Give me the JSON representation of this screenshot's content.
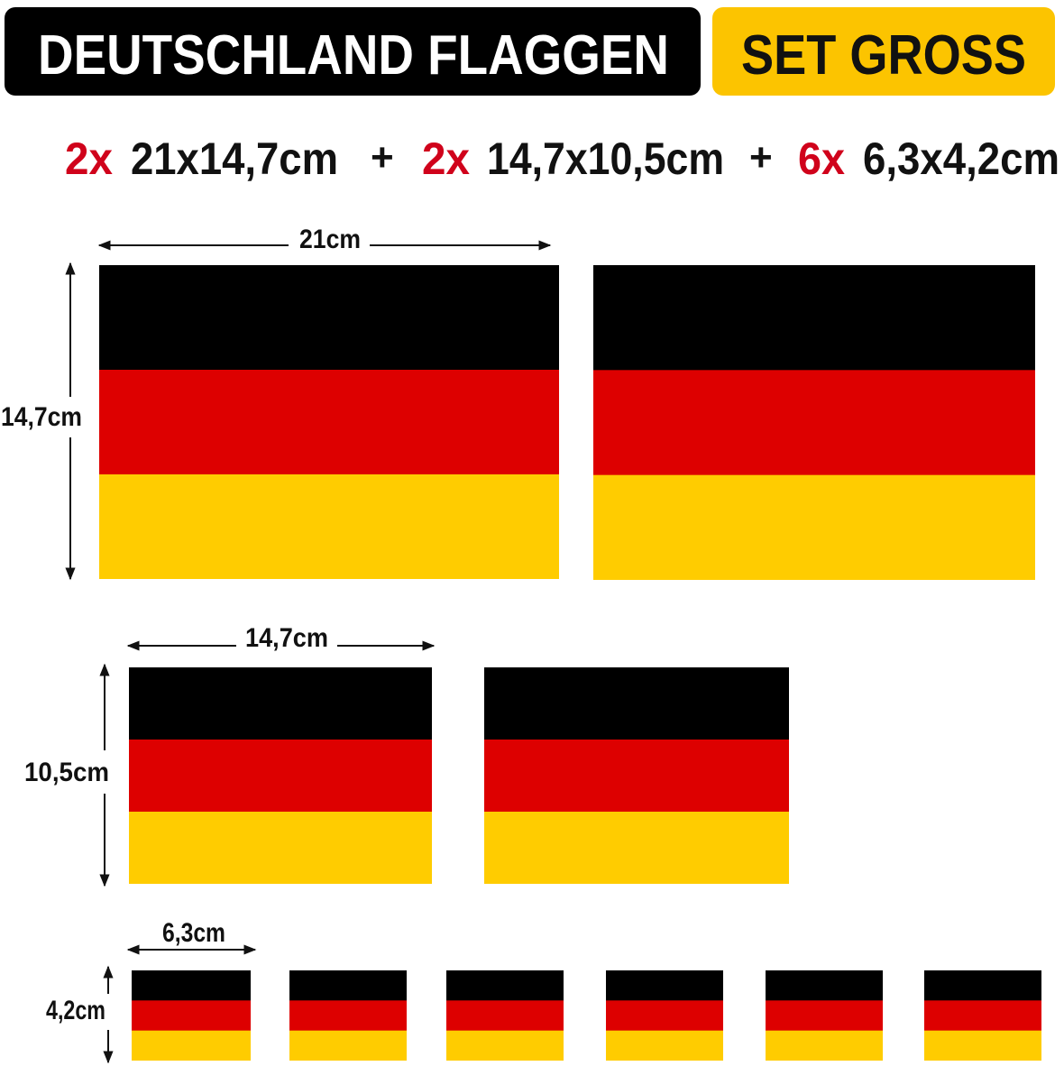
{
  "header": {
    "title": "DEUTSCHLAND FLAGGEN",
    "badge": "SET GROSS"
  },
  "summary": [
    {
      "count": "2x",
      "size": "21x14,7cm"
    },
    {
      "separator": "+"
    },
    {
      "count": "2x",
      "size": "14,7x10,5cm"
    },
    {
      "separator": "+"
    },
    {
      "count": "6x",
      "size": "6,3x4,2cm"
    }
  ],
  "sets": [
    {
      "width_label": "21cm",
      "height_label": "14,7cm"
    },
    {
      "width_label": "14,7cm",
      "height_label": "10,5cm"
    },
    {
      "width_label": "6,3cm",
      "height_label": "4,2cm"
    }
  ]
}
